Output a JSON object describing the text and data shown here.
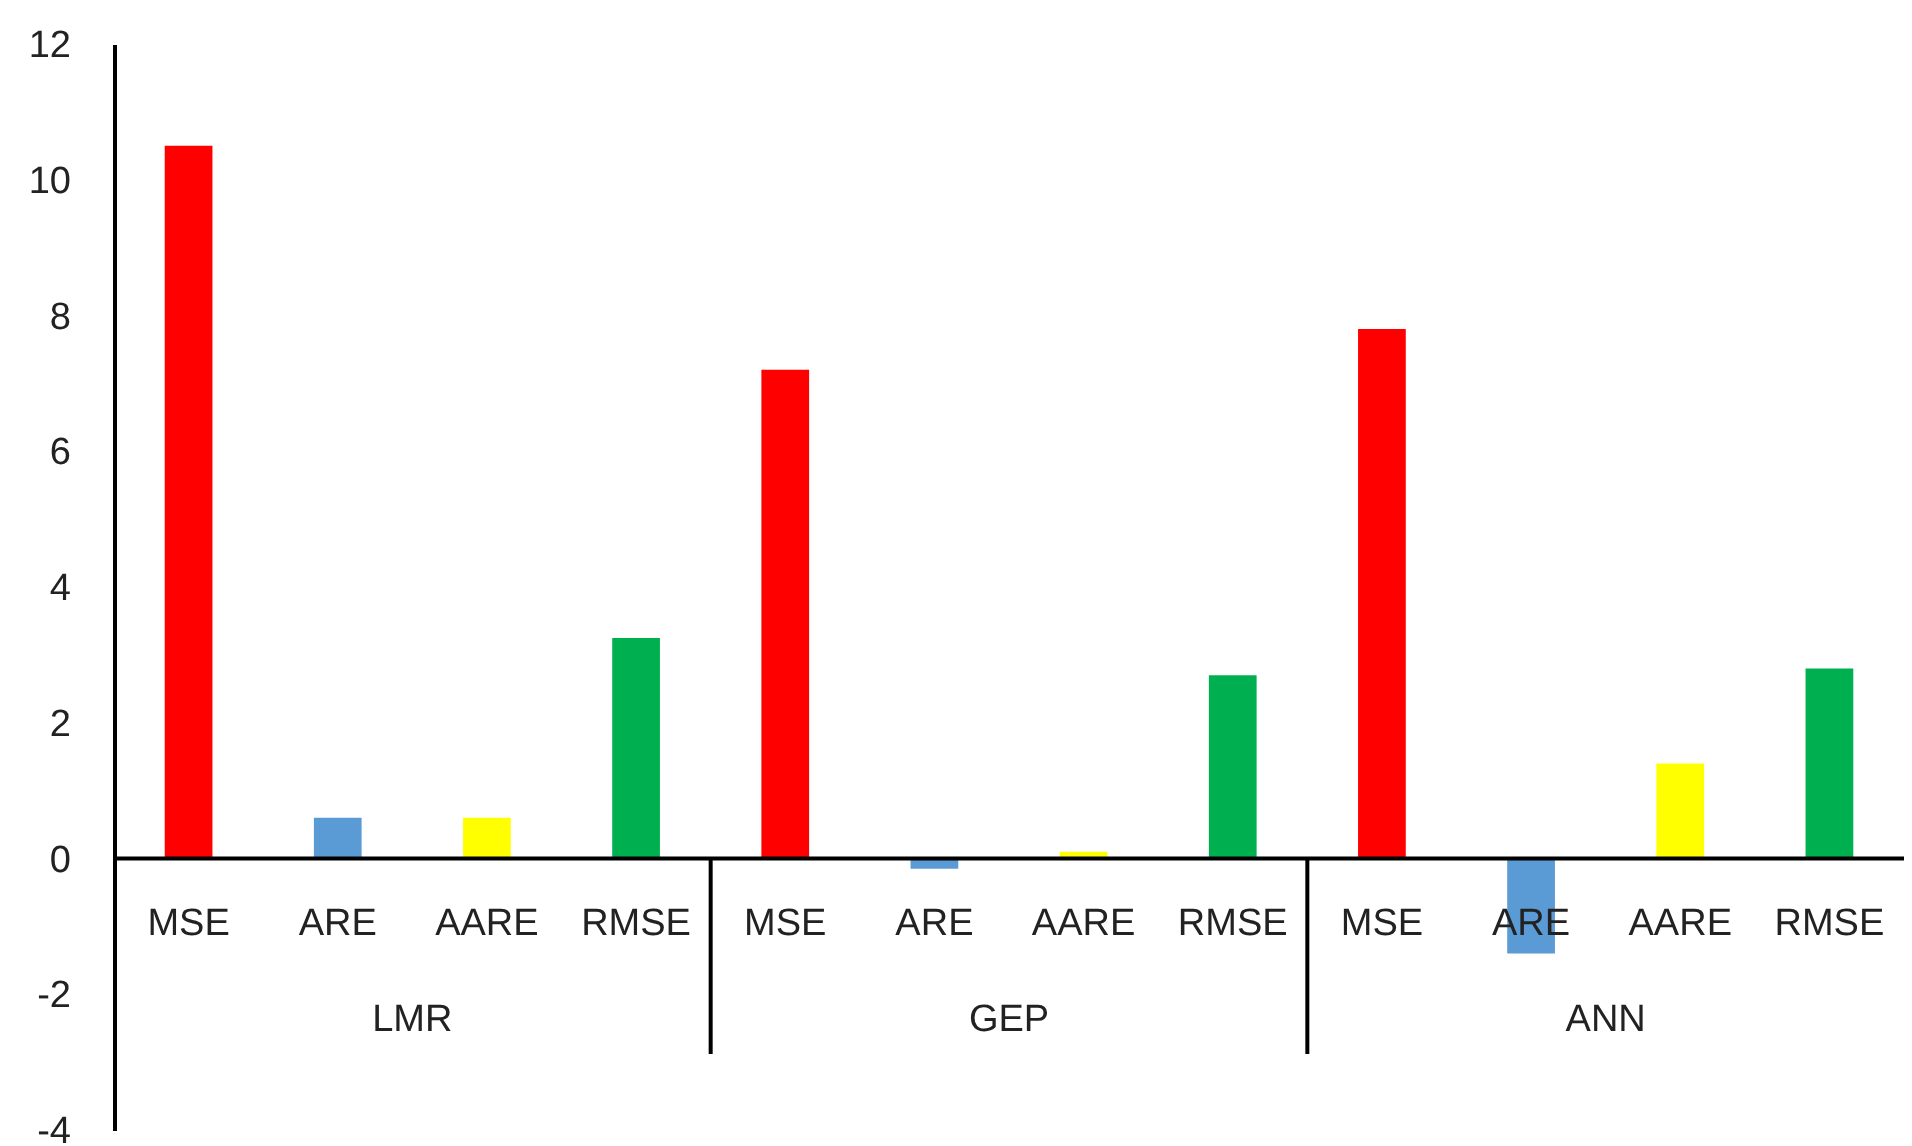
{
  "chart_data": {
    "type": "bar",
    "categories": [
      "MSE",
      "ARE",
      "AARE",
      "RMSE",
      "MSE",
      "ARE",
      "AARE",
      "RMSE",
      "MSE",
      "ARE",
      "AARE",
      "RMSE"
    ],
    "values": [
      10.5,
      0.6,
      0.6,
      3.25,
      7.2,
      -0.15,
      0.1,
      2.7,
      7.8,
      -1.4,
      1.4,
      2.8
    ],
    "colors": [
      "#ff0000",
      "#5b9bd5",
      "#ffff00",
      "#00b050",
      "#ff0000",
      "#5b9bd5",
      "#ffff00",
      "#00b050",
      "#ff0000",
      "#5b9bd5",
      "#ffff00",
      "#00b050"
    ],
    "annotations": [
      "LMR",
      "GEP",
      "ANN"
    ],
    "ylim": [
      -4,
      12
    ],
    "yticks": [
      -4,
      -2,
      0,
      2,
      4,
      6,
      8,
      10,
      12
    ]
  }
}
